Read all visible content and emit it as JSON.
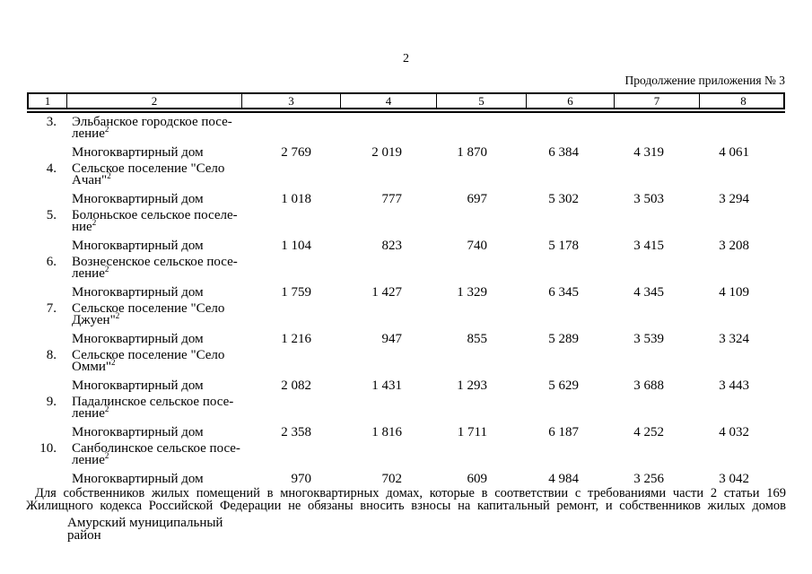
{
  "page": {
    "number": "2",
    "continuation": "Продолжение приложения № 3"
  },
  "table": {
    "header_cols": [
      "1",
      "2",
      "3",
      "4",
      "5",
      "6",
      "7",
      "8"
    ],
    "sections": [
      {
        "num": "3.",
        "name_line1": "Эльбанское городское посе-",
        "name_line2": "ление",
        "footnote_mark": "2",
        "house_type": "Многоквартирный дом",
        "values": [
          "2 769",
          "2 019",
          "1 870",
          "6 384",
          "4 319",
          "4 061"
        ]
      },
      {
        "num": "4.",
        "name_line1": "Сельское поселение \"Село",
        "name_line2": "Ачан\"",
        "footnote_mark": "2",
        "house_type": "Многоквартирный дом",
        "values": [
          "1 018",
          "777",
          "697",
          "5 302",
          "3 503",
          "3 294"
        ]
      },
      {
        "num": "5.",
        "name_line1": "Болоньское сельское поселе-",
        "name_line2": "ние",
        "footnote_mark": "2",
        "house_type": "Многоквартирный дом",
        "values": [
          "1 104",
          "823",
          "740",
          "5 178",
          "3 415",
          "3 208"
        ]
      },
      {
        "num": "6.",
        "name_line1": "Вознесенское сельское посе-",
        "name_line2": "ление",
        "footnote_mark": "2",
        "house_type": "Многоквартирный дом",
        "values": [
          "1 759",
          "1 427",
          "1 329",
          "6 345",
          "4 345",
          "4 109"
        ]
      },
      {
        "num": "7.",
        "name_line1": "Сельское поселение \"Село",
        "name_line2": "Джуен\"",
        "footnote_mark": "2",
        "house_type": "Многоквартирный дом",
        "values": [
          "1 216",
          "947",
          "855",
          "5 289",
          "3 539",
          "3 324"
        ]
      },
      {
        "num": "8.",
        "name_line1": "Сельское поселение \"Село",
        "name_line2": "Омми\"",
        "footnote_mark": "2",
        "house_type": "Многоквартирный дом",
        "values": [
          "2 082",
          "1 431",
          "1 293",
          "5 629",
          "3 688",
          "3 443"
        ]
      },
      {
        "num": "9.",
        "name_line1": "Падалинское сельское посе-",
        "name_line2": "ление",
        "footnote_mark": "2",
        "house_type": "Многоквартирный дом",
        "values": [
          "2 358",
          "1 816",
          "1 711",
          "6 187",
          "4 252",
          "4 032"
        ]
      },
      {
        "num": "10.",
        "name_line1": "Санболинское сельское посе-",
        "name_line2": "ление",
        "footnote_mark": "2",
        "house_type": "Многоквартирный дом",
        "values": [
          "970",
          "702",
          "609",
          "4 984",
          "3 256",
          "3 042"
        ]
      }
    ]
  },
  "footnote": {
    "line1": "Для собственников жилых помещений в многоквартирных домах, которые в соответствии с требованиями части 2 статьи 169",
    "line2": "Жилищного кодекса Российской Федерации не обязаны вносить взносы на капитальный ремонт, и собственников жилых домов"
  },
  "region": {
    "name": "Амурский муниципальный район"
  }
}
